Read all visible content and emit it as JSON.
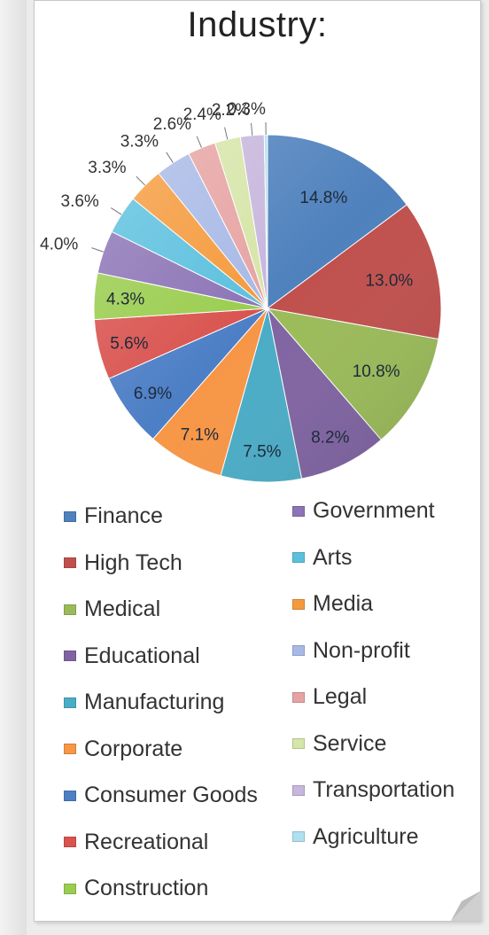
{
  "chart_data": {
    "type": "pie",
    "title": "Industry:",
    "labels": [
      "Finance",
      "High Tech",
      "Medical",
      "Educational",
      "Manufacturing",
      "Corporate",
      "Consumer Goods",
      "Recreational",
      "Construction",
      "Government",
      "Arts",
      "Media",
      "Non-profit",
      "Legal",
      "Service",
      "Transportation",
      "Agriculture"
    ],
    "values": [
      14.8,
      13.0,
      10.8,
      8.2,
      7.5,
      7.1,
      6.9,
      5.6,
      4.3,
      4.0,
      3.6,
      3.3,
      3.3,
      2.6,
      2.4,
      2.2,
      0.3
    ],
    "value_labels": [
      "14.8%",
      "13.0%",
      "10.8%",
      "8.2%",
      "7.5%",
      "7.1%",
      "6.9%",
      "5.6%",
      "4.3%",
      "4.0%",
      "3.6%",
      "3.3%",
      "3.3%",
      "2.6%",
      "2.4%",
      "2.2%",
      "0.3%"
    ],
    "colors": [
      "#4f81bd",
      "#c0504d",
      "#9bbb59",
      "#8064a2",
      "#4bacc6",
      "#f79646",
      "#4d7fc6",
      "#d9534f",
      "#9acd4f",
      "#8c74b6",
      "#5bc0de",
      "#f59a3c",
      "#a8b9e6",
      "#e7a3a3",
      "#d6e5a8",
      "#c7b6dd",
      "#aee0ef"
    ],
    "legend_position": "bottom",
    "start_angle_deg": 0,
    "direction": "clockwise"
  },
  "legend": {
    "columns": [
      [
        "Finance",
        "High Tech",
        "Medical",
        "Educational",
        "Manufacturing",
        "Corporate",
        "Consumer Goods",
        "Recreational",
        "Construction"
      ],
      [
        "Government",
        "Arts",
        "Media",
        "Non-profit",
        "Legal",
        "Service",
        "Transportation",
        "Agriculture"
      ]
    ]
  }
}
